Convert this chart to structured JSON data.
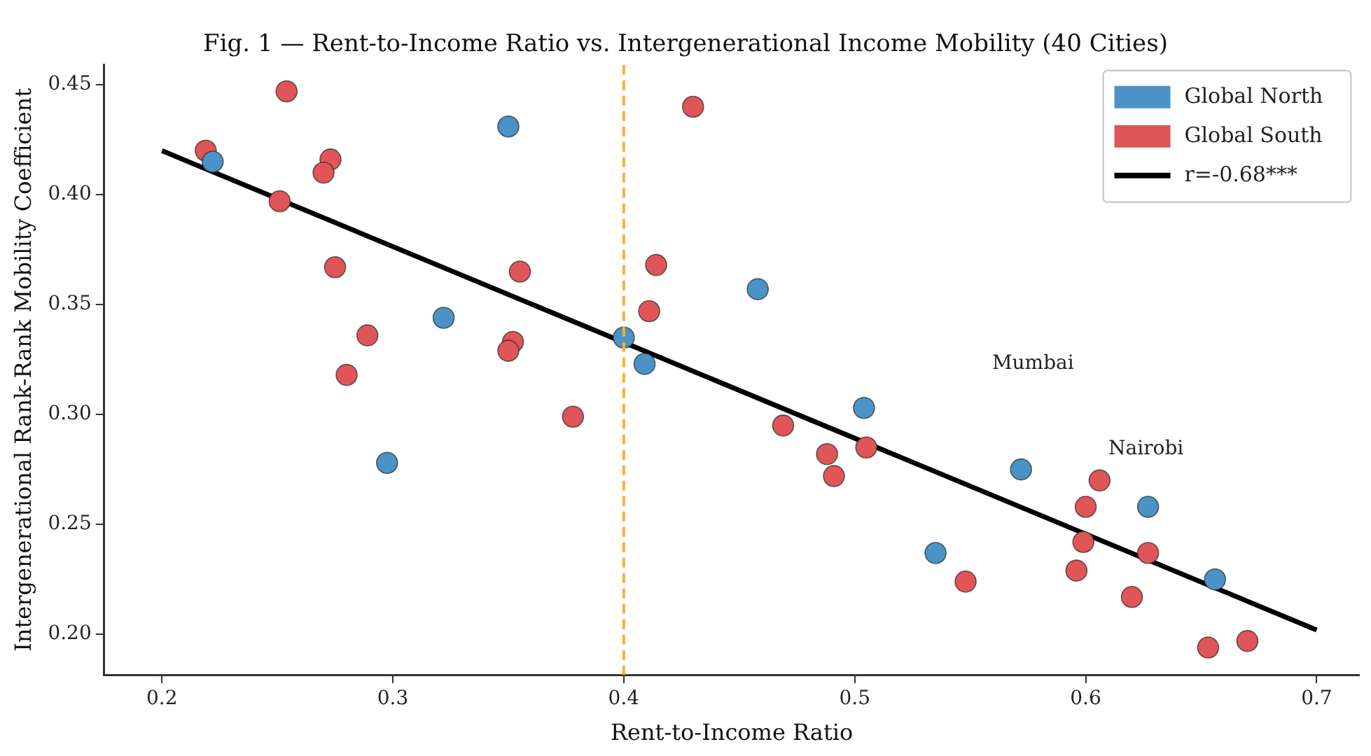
{
  "chart_data": {
    "type": "scatter",
    "title": "Fig. 1 — Rent-to-Income Ratio vs. Intergenerational Income Mobility (40 Cities)",
    "xlabel": "Rent-to-Income Ratio",
    "ylabel": "Intergenerational Rank-Rank Mobility Coefficient",
    "xlim": [
      0.175,
      0.7185
    ],
    "xticks": [
      0.2,
      0.3,
      0.4,
      0.5,
      0.6,
      0.7
    ],
    "ylim": [
      0.1816,
      0.459
    ],
    "yticks": [
      {
        "value": 0.2,
        "label": "0.20"
      },
      {
        "value": 0.25,
        "label": "0.25"
      },
      {
        "value": 0.3,
        "label": "0.30"
      },
      {
        "value": 0.35,
        "label": "0.35"
      },
      {
        "value": 0.4,
        "label": "0.40"
      },
      {
        "value": 0.45,
        "label": "0.45"
      }
    ],
    "grid": false,
    "legend": "top right",
    "marker": "circle",
    "series": [
      {
        "name": "Global North",
        "color": "#4b93c6",
        "x": [
          0.222,
          0.35,
          0.322,
          0.2975,
          0.458,
          0.4,
          0.409,
          0.504,
          0.572,
          0.627,
          0.535,
          0.656
        ],
        "values": [
          0.415,
          0.431,
          0.344,
          0.278,
          0.357,
          0.335,
          0.323,
          0.303,
          0.275,
          0.258,
          0.237,
          0.225
        ]
      },
      {
        "name": "Global South",
        "color": "#e05558",
        "x": [
          0.219,
          0.254,
          0.273,
          0.27,
          0.251,
          0.275,
          0.289,
          0.28,
          0.355,
          0.352,
          0.35,
          0.378,
          0.43,
          0.414,
          0.411,
          0.469,
          0.488,
          0.491,
          0.505,
          0.548,
          0.606,
          0.6,
          0.599,
          0.596,
          0.627,
          0.62,
          0.653,
          0.67
        ],
        "values": [
          0.42,
          0.447,
          0.416,
          0.41,
          0.397,
          0.367,
          0.336,
          0.318,
          0.365,
          0.333,
          0.329,
          0.299,
          0.44,
          0.368,
          0.347,
          0.295,
          0.282,
          0.272,
          0.285,
          0.224,
          0.27,
          0.258,
          0.242,
          0.229,
          0.237,
          0.217,
          0.194,
          0.197
        ]
      },
      {
        "name": "r=-0.68***",
        "type": "line",
        "marker": "none",
        "color": "#000000",
        "x": [
          0.2,
          0.7
        ],
        "values": [
          0.42,
          0.202
        ]
      }
    ],
    "ref_lines": [
      {
        "axis": "x",
        "value": 0.4,
        "color": "#f9b233",
        "line_style": "dashed"
      }
    ],
    "annotations": [
      "Mumbai",
      "Nairobi"
    ]
  }
}
